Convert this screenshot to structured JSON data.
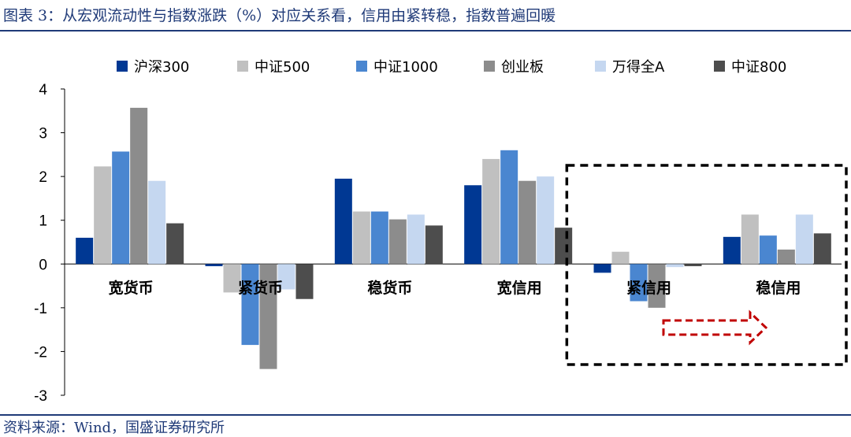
{
  "header": {
    "title": "图表 3：从宏观流动性与指数涨跌（%）对应关系看，信用由紧转稳，指数普遍回暖"
  },
  "footer": {
    "source": "资料来源：Wind，国盛证券研究所"
  },
  "colors": {
    "series": [
      "#003893",
      "#c0c0c0",
      "#4a86d0",
      "#8c8c8c",
      "#c5d7f0",
      "#4d4d4d"
    ],
    "highlight_box": "#000000",
    "arrow": "#c00000",
    "rule": "#1f3a78"
  },
  "chart_data": {
    "type": "bar",
    "title": "从宏观流动性与指数涨跌（%）对应关系看，信用由紧转稳，指数普遍回暖",
    "xlabel": "",
    "ylabel": "",
    "ylim": [
      -3,
      4
    ],
    "yticks": [
      4,
      3,
      2,
      1,
      0,
      -1,
      -2,
      -3
    ],
    "legend_position": "top",
    "grid": false,
    "categories": [
      "宽货币",
      "紧货币",
      "稳货币",
      "宽信用",
      "紧信用",
      "稳信用"
    ],
    "series": [
      {
        "name": "沪深300",
        "values": [
          0.6,
          -0.05,
          1.95,
          1.8,
          -0.2,
          0.62
        ]
      },
      {
        "name": "中证500",
        "values": [
          2.23,
          -0.65,
          1.2,
          2.4,
          0.28,
          1.13
        ]
      },
      {
        "name": "中证1000",
        "values": [
          2.57,
          -1.85,
          1.2,
          2.6,
          -0.85,
          0.65
        ]
      },
      {
        "name": "创业板",
        "values": [
          3.57,
          -2.4,
          1.02,
          1.9,
          -1.0,
          0.33
        ]
      },
      {
        "name": "万得全A",
        "values": [
          1.9,
          -0.58,
          1.13,
          2.0,
          -0.07,
          1.13
        ]
      },
      {
        "name": "中证800",
        "values": [
          0.93,
          -0.8,
          0.88,
          0.83,
          -0.05,
          0.7
        ]
      }
    ],
    "annotations": [
      {
        "type": "dashed-box",
        "covers": [
          "紧信用",
          "稳信用"
        ]
      },
      {
        "type": "arrow",
        "from": "紧信用",
        "to": "稳信用"
      }
    ]
  }
}
